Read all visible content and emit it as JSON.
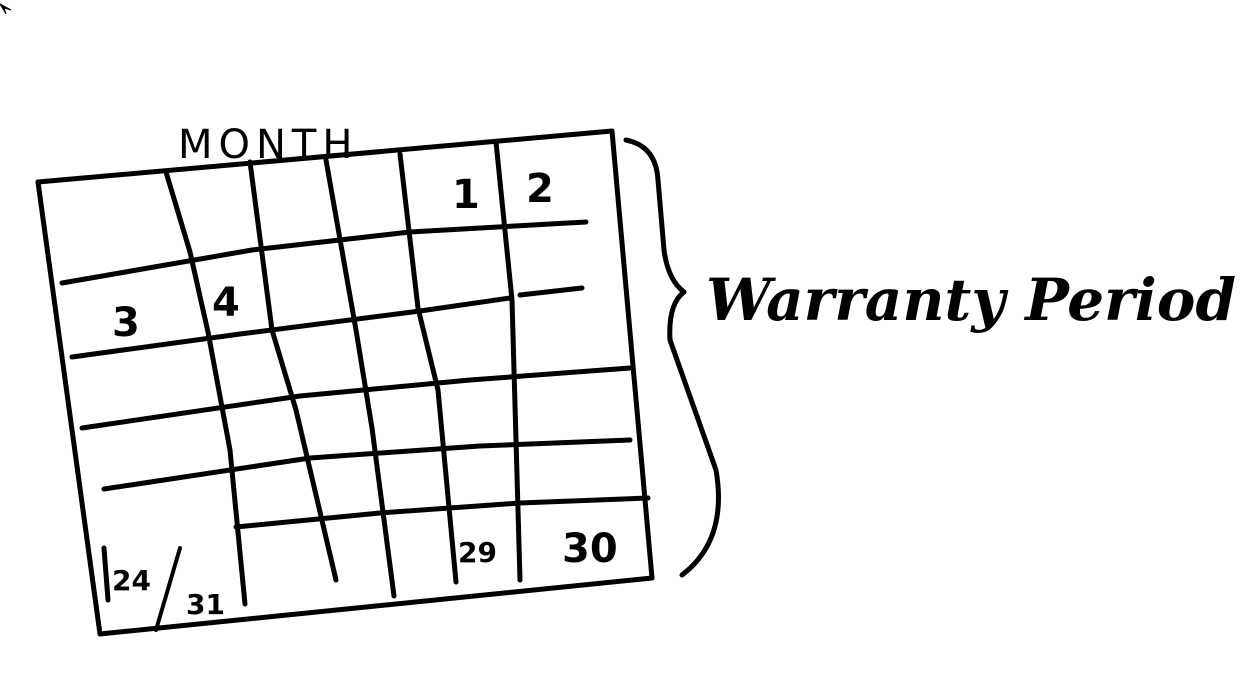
{
  "diagram": {
    "title": "MONTH",
    "brace_label": "Warranty Period",
    "cells": {
      "day_1": "1",
      "day_2": "2",
      "day_3": "3",
      "day_4": "4",
      "day_24_31_top": "24",
      "day_24_31_bottom": "31",
      "day_29": "29",
      "day_30": "30"
    }
  }
}
